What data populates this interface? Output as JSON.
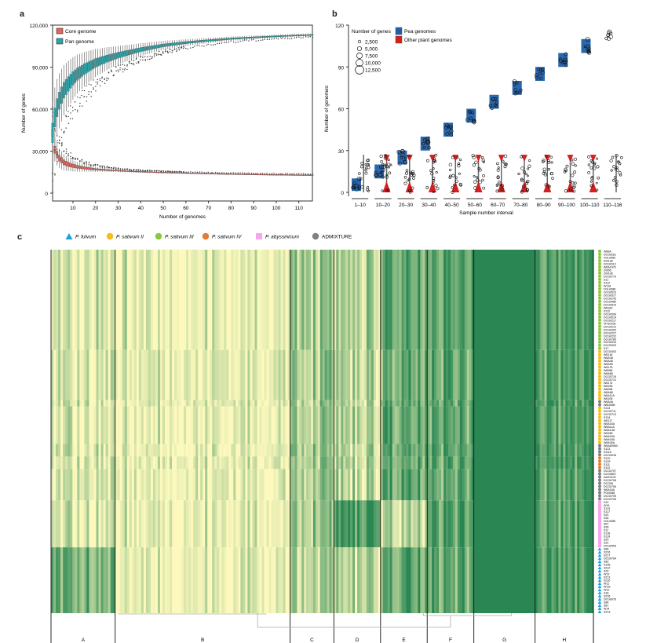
{
  "chart_data": [
    {
      "panel": "a",
      "type": "box",
      "title": "",
      "xlabel": "Number of genomes",
      "ylabel": "Number of genes",
      "xlim": [
        1,
        116
      ],
      "ylim": [
        0,
        120000
      ],
      "xticks": [
        10,
        20,
        30,
        40,
        50,
        60,
        70,
        80,
        90,
        100,
        110
      ],
      "yticks": [
        0,
        30000,
        60000,
        90000,
        120000
      ],
      "ytick_labels": [
        "0",
        "30,000",
        "60,000",
        "90,000",
        "120,000"
      ],
      "legend": {
        "position": "top-left",
        "entries": [
          {
            "label": "Core genome",
            "color": "#e0655a"
          },
          {
            "label": "Pan genome",
            "color": "#2aa4a8"
          }
        ]
      },
      "series": [
        {
          "name": "Core genome",
          "color": "#e0655a",
          "x": [
            1,
            2,
            3,
            4,
            5,
            6,
            8,
            10,
            12,
            15,
            20,
            25,
            30,
            40,
            50,
            60,
            70,
            80,
            90,
            100,
            110,
            116
          ],
          "median": [
            43000,
            31000,
            27500,
            25000,
            23500,
            22000,
            20500,
            19500,
            18800,
            18000,
            17000,
            16500,
            16000,
            15300,
            14800,
            14400,
            14000,
            13700,
            13400,
            13200,
            13000,
            12900
          ]
        },
        {
          "name": "Pan genome",
          "color": "#2aa4a8",
          "x": [
            1,
            2,
            3,
            4,
            5,
            6,
            8,
            10,
            12,
            15,
            20,
            25,
            30,
            40,
            50,
            60,
            70,
            80,
            90,
            100,
            110,
            116
          ],
          "median": [
            43000,
            54000,
            61000,
            66000,
            70000,
            73500,
            78000,
            82000,
            85000,
            88500,
            93000,
            96000,
            98500,
            102500,
            105500,
            107500,
            109000,
            110300,
            111200,
            112000,
            112700,
            113000
          ]
        }
      ]
    },
    {
      "panel": "b",
      "type": "scatter",
      "title": "",
      "xlabel": "Sample number interval",
      "ylabel": "Number of genomes",
      "ylim": [
        0,
        120
      ],
      "yticks": [
        0,
        30,
        60,
        90,
        120
      ],
      "categories": [
        "1–10",
        "10–20",
        "20–30",
        "30–40",
        "40–50",
        "50–60",
        "60–70",
        "70–80",
        "80–90",
        "90–100",
        "100–110",
        "110–116"
      ],
      "legend_size": {
        "title": "Number of genes",
        "entries": [
          "2,500",
          "5,000",
          "7,500",
          "10,000",
          "12,500"
        ]
      },
      "legend_color": [
        {
          "label": "Pea genomes",
          "color": "#1f5fa8"
        },
        {
          "label": "Other plant genomes",
          "color": "#d81e1e"
        }
      ],
      "series": [
        {
          "name": "Pea genomes",
          "color": "#1f5fa8",
          "ranges": [
            [
              1,
              10
            ],
            [
              10,
              20
            ],
            [
              20,
              30
            ],
            [
              30,
              40
            ],
            [
              40,
              50
            ],
            [
              50,
              60
            ],
            [
              60,
              70
            ],
            [
              70,
              80
            ],
            [
              80,
              90
            ],
            [
              90,
              100
            ],
            [
              100,
              110
            ],
            [
              110,
              116
            ]
          ]
        },
        {
          "name": "Other plant genomes",
          "color": "#d81e1e",
          "ranges": [
            [
              0,
              27
            ],
            [
              0,
              27
            ],
            [
              0,
              27
            ],
            [
              0,
              27
            ],
            [
              0,
              27
            ],
            [
              0,
              27
            ],
            [
              0,
              27
            ],
            [
              0,
              27
            ],
            [
              0,
              27
            ],
            [
              0,
              27
            ],
            [
              0,
              27
            ],
            [
              0,
              27
            ]
          ]
        }
      ]
    },
    {
      "panel": "c",
      "type": "heatmap",
      "title": "",
      "column_clusters": [
        "A",
        "B",
        "C",
        "D",
        "E",
        "F",
        "G",
        "H"
      ],
      "column_cluster_widths": [
        0.11,
        0.3,
        0.075,
        0.08,
        0.08,
        0.08,
        0.105,
        0.1
      ],
      "cluster_density": [
        0.15,
        0.08,
        0.45,
        0.35,
        0.65,
        0.75,
        1.0,
        0.85
      ],
      "color_low": "#fdf9bd",
      "color_high": "#2a8753",
      "legend": {
        "position": "top",
        "entries": [
          {
            "label": "P. fulvum",
            "shape": "triangle",
            "color": "#1aa3dc"
          },
          {
            "label": "P. sativum II",
            "shape": "circle",
            "color": "#f7bd16"
          },
          {
            "label": "P. sativum III",
            "shape": "circle",
            "color": "#8dc63f"
          },
          {
            "label": "P. sativum IV",
            "shape": "circle",
            "color": "#e57b30"
          },
          {
            "label": "P. abyssinicum",
            "shape": "square",
            "color": "#f7a6e8"
          },
          {
            "label": "ADMIXTURE",
            "shape": "circle",
            "color": "#808080"
          }
        ]
      },
      "row_groups": [
        {
          "group": "P. sativum III",
          "labels": [
            "W66A",
            "DCG0261",
            "VGL0060",
            "ZW138",
            "DCG0112",
            "W6A1070",
            "ZW56",
            "ZW108",
            "DCG0770",
            "S11",
            "S112",
            "W118",
            "VGL0088",
            "DCG0515",
            "DCG0517",
            "DCG0143",
            "DCG0480",
            "DCG0519",
            "W6180",
            "S112",
            "DCG0506",
            "DCG0514",
            "DCG0217",
            "VFG0108",
            "DCG0212",
            "DCG0303",
            "DCG0227",
            "DCG0232",
            "DCG0780",
            "DCG0315",
            "DCG0323",
            "S17"
          ]
        },
        {
          "group": "P. sativum II",
          "labels": [
            "DCG0403",
            "W6118",
            "W6A38",
            "W6A46",
            "W6A50",
            "W6178",
            "W6068",
            "W6A86",
            "DCG0719",
            "DCG0712",
            "W6174",
            "W6156",
            "W6058",
            "W6A88",
            "W6A11A",
            "W6108"
          ]
        },
        {
          "group": "ADMIXTURE",
          "labels": [
            "W6A4A",
            "W6G06B"
          ]
        },
        {
          "group": "P. sativum II",
          "labels": [
            "S113",
            "DCG0711",
            "DCG0713",
            "S124",
            "W6117",
            "W6A16A",
            "W6A11A",
            "W6A14A",
            "W6188",
            "W6A20A",
            "W6A18A",
            "W6A30A"
          ]
        },
        {
          "group": "ADMIXTURE",
          "labels": [
            "W6A80060",
            "S123",
            "S1110",
            "DCG0018"
          ]
        },
        {
          "group": "P. sativum IV",
          "labels": [
            "S120",
            "S125",
            "S111",
            "S102"
          ]
        },
        {
          "group": "ADMIXTURE",
          "labels": [
            "DCG0707",
            "DCG0807",
            "AAG0102",
            "DCG0706",
            "DCG06",
            "DCG0706",
            "W6A16A",
            "PGI0088",
            "DCG0709",
            "DCG0706"
          ]
        },
        {
          "group": "P. abyssinicum",
          "labels": [
            "S12",
            "W16",
            "S113",
            "S117",
            "S20",
            "S26",
            "VGL0085",
            "S67",
            "S28",
            "S11",
            "S118",
            "S119",
            "S20",
            "S22",
            "DCG0053"
          ]
        },
        {
          "group": "P. fulvum",
          "labels": [
            "S66",
            "S216",
            "S217",
            "DCG0764",
            "S83",
            "S106",
            "S212",
            "S29",
            "W13",
            "S213",
            "S216",
            "W11",
            "W111",
            "W12",
            "S18",
            "S216",
            "DCG0076",
            "S84",
            "S87",
            "W14",
            "S213"
          ]
        }
      ]
    }
  ],
  "panels": {
    "a": "a",
    "b": "b",
    "c": "c"
  }
}
